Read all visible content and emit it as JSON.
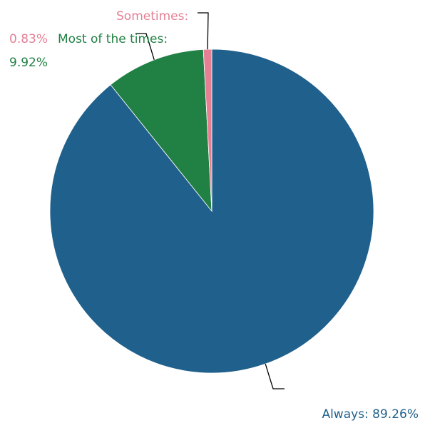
{
  "chart_data": {
    "type": "pie",
    "title": "",
    "slices": [
      {
        "label": "Always",
        "value": 89.26,
        "display": "Always: 89.26%",
        "color": "#20608c"
      },
      {
        "label": "Most of the times",
        "value": 9.92,
        "display": "Most of the times: 9.92%",
        "color": "#218044"
      },
      {
        "label": "Sometimes",
        "value": 0.83,
        "display": "Sometimes: 0.83%",
        "color": "#e57f94"
      }
    ],
    "start_angle_deg": 0,
    "direction": "clockwise",
    "leader_color": "#000000",
    "legend": "none"
  }
}
